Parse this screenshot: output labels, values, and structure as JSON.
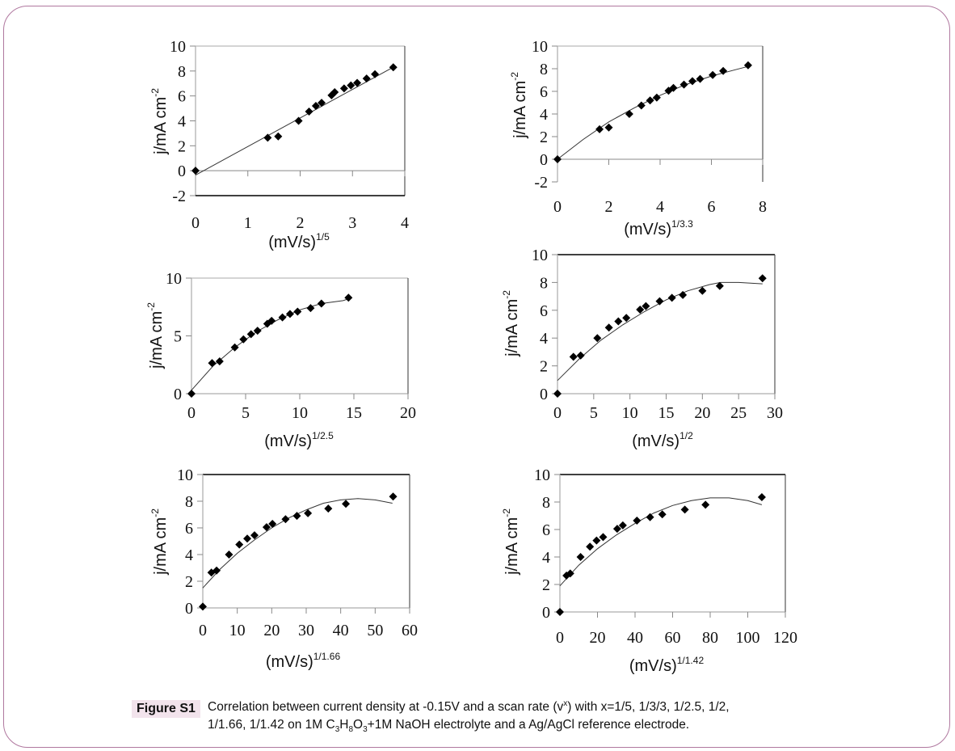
{
  "figure": {
    "label": "Figure S1",
    "caption_line1": "Correlation between current density at -0.15V and a scan rate (v",
    "caption_sup": "x",
    "caption_line1b": ") with x=1/5, 1/3/3, 1/2.5, 1/2,",
    "caption_line2a": "1/1.66, 1/1.42 on 1M C",
    "sub3a": "3",
    "H": "H",
    "sub8": "8",
    "O": "O",
    "sub3b": "3",
    "caption_line2b": "+1M NaOH electrolyte and a Ag/AgCl reference electrode.",
    "colors": {
      "border": "#b0789f",
      "badge_bg": "#f2e3ec",
      "marker": "#000000",
      "fit_line": "#333333"
    }
  },
  "chart_data": [
    {
      "type": "scatter",
      "title": "",
      "xlabel": "(mV/s)",
      "xlabel_exp": "1/5",
      "ylabel": "j/mA cm",
      "ylabel_exp": "-2",
      "xlim": [
        0,
        4
      ],
      "ylim": [
        -2,
        10
      ],
      "xticks": [
        0,
        1,
        2,
        3,
        4
      ],
      "yticks": [
        -2,
        0,
        2,
        4,
        6,
        8,
        10
      ],
      "x": [
        0,
        1.38,
        1.58,
        1.97,
        2.17,
        2.3,
        2.41,
        2.6,
        2.66,
        2.84,
        2.97,
        3.09,
        3.27,
        3.43,
        3.78
      ],
      "y": [
        0,
        2.65,
        2.75,
        4.0,
        4.75,
        5.2,
        5.45,
        6.05,
        6.3,
        6.6,
        6.85,
        7.05,
        7.4,
        7.75,
        8.3
      ],
      "fit": {
        "kind": "linear",
        "x": [
          0,
          3.8
        ],
        "y": [
          -0.35,
          8.35
        ]
      }
    },
    {
      "type": "scatter",
      "title": "",
      "xlabel": "(mV/s)",
      "xlabel_exp": "1/3.3",
      "ylabel": "j/mA cm",
      "ylabel_exp": "-2",
      "xlim": [
        0,
        8
      ],
      "ylim": [
        -2,
        10
      ],
      "xticks": [
        0,
        2,
        4,
        6,
        8
      ],
      "yticks": [
        -2,
        0,
        2,
        4,
        6,
        8,
        10
      ],
      "x": [
        0,
        1.64,
        2.0,
        2.8,
        3.27,
        3.61,
        3.87,
        4.33,
        4.52,
        4.93,
        5.26,
        5.56,
        6.05,
        6.46,
        7.43
      ],
      "y": [
        0,
        2.65,
        2.8,
        4.0,
        4.75,
        5.2,
        5.45,
        6.05,
        6.3,
        6.6,
        6.9,
        7.1,
        7.45,
        7.8,
        8.3
      ],
      "fit": {
        "kind": "curve",
        "x": [
          0,
          1,
          2,
          3,
          4,
          5,
          6,
          7,
          7.43
        ],
        "y": [
          0,
          1.75,
          3.3,
          4.55,
          5.65,
          6.6,
          7.35,
          7.95,
          8.2
        ]
      }
    },
    {
      "type": "scatter",
      "title": "",
      "xlabel": "(mV/s)",
      "xlabel_exp": "1/2.5",
      "ylabel": "j/mA cm",
      "ylabel_exp": "-2",
      "xlim": [
        0,
        20
      ],
      "ylim": [
        0,
        10
      ],
      "xticks": [
        0,
        5,
        10,
        15,
        20
      ],
      "yticks": [
        0,
        5,
        10
      ],
      "x": [
        0,
        1.9,
        2.6,
        4.0,
        4.8,
        5.5,
        6.1,
        7.0,
        7.4,
        8.4,
        9.1,
        9.8,
        11.0,
        12.0,
        14.5
      ],
      "y": [
        0,
        2.65,
        2.8,
        4.0,
        4.7,
        5.15,
        5.45,
        6.05,
        6.3,
        6.6,
        6.9,
        7.1,
        7.4,
        7.8,
        8.3
      ],
      "fit": {
        "kind": "curve",
        "x": [
          0,
          2,
          4,
          6,
          8,
          10,
          12,
          14,
          14.5
        ],
        "y": [
          0.3,
          2.4,
          4.0,
          5.35,
          6.4,
          7.25,
          7.8,
          8.05,
          8.2
        ]
      }
    },
    {
      "type": "scatter",
      "title": "",
      "xlabel": "(mV/s)",
      "xlabel_exp": "1/2",
      "ylabel": "j/mA cm",
      "ylabel_exp": "-2",
      "xlim": [
        0,
        30
      ],
      "ylim": [
        0,
        10
      ],
      "xticks": [
        0,
        5,
        10,
        15,
        20,
        25,
        30
      ],
      "yticks": [
        0,
        2,
        4,
        6,
        8,
        10
      ],
      "x": [
        0,
        2.2,
        3.2,
        5.5,
        7.1,
        8.4,
        9.5,
        11.4,
        12.2,
        14.1,
        15.8,
        17.3,
        20.0,
        22.4,
        28.3
      ],
      "y": [
        0,
        2.65,
        2.75,
        4.0,
        4.75,
        5.2,
        5.45,
        6.05,
        6.3,
        6.65,
        6.9,
        7.1,
        7.4,
        7.75,
        8.3
      ],
      "fit": {
        "kind": "curve",
        "x": [
          0,
          3,
          6,
          9,
          12,
          15,
          18,
          21,
          22.5,
          25,
          28.3
        ],
        "y": [
          0.95,
          2.5,
          3.85,
          4.95,
          5.9,
          6.75,
          7.4,
          7.85,
          8.0,
          8.0,
          7.9
        ]
      }
    },
    {
      "type": "scatter",
      "title": "",
      "xlabel": "(mV/s)",
      "xlabel_exp": "1/1.66",
      "ylabel": "j/mA cm",
      "ylabel_exp": "-2",
      "xlim": [
        0,
        60
      ],
      "ylim": [
        0,
        10
      ],
      "xticks": [
        0,
        10,
        20,
        30,
        40,
        50,
        60
      ],
      "yticks": [
        0,
        2,
        4,
        6,
        8,
        10
      ],
      "x": [
        0,
        2.5,
        4.0,
        7.6,
        10.6,
        12.9,
        15.0,
        18.5,
        20.2,
        24.0,
        27.3,
        30.5,
        36.4,
        41.5,
        55.2
      ],
      "y": [
        0.1,
        2.65,
        2.8,
        4.0,
        4.75,
        5.2,
        5.45,
        6.05,
        6.3,
        6.65,
        6.9,
        7.1,
        7.45,
        7.8,
        8.35
      ],
      "fit": {
        "kind": "curve",
        "x": [
          0,
          5,
          10,
          15,
          20,
          25,
          30,
          35,
          40,
          45,
          50,
          55
        ],
        "y": [
          1.5,
          2.9,
          4.1,
          5.1,
          6.0,
          6.75,
          7.35,
          7.85,
          8.1,
          8.2,
          8.1,
          7.85
        ]
      }
    },
    {
      "type": "scatter",
      "title": "",
      "xlabel": "(mV/s)",
      "xlabel_exp": "1/1.42",
      "ylabel": "j/mA cm",
      "ylabel_exp": "-2",
      "xlim": [
        0,
        120
      ],
      "ylim": [
        0,
        10
      ],
      "xticks": [
        0,
        20,
        40,
        60,
        80,
        100,
        120
      ],
      "yticks": [
        0,
        2,
        4,
        6,
        8,
        10
      ],
      "x": [
        0,
        3.5,
        5.5,
        11,
        16,
        19.5,
        23,
        30.5,
        33.5,
        41,
        48,
        54.5,
        66.5,
        77.5,
        107.5
      ],
      "y": [
        0,
        2.65,
        2.8,
        4.0,
        4.75,
        5.2,
        5.45,
        6.05,
        6.3,
        6.65,
        6.9,
        7.1,
        7.45,
        7.8,
        8.35
      ],
      "fit": {
        "kind": "curve",
        "x": [
          0,
          10,
          20,
          30,
          40,
          50,
          60,
          70,
          80,
          90,
          100,
          107.5
        ],
        "y": [
          1.9,
          3.4,
          4.6,
          5.6,
          6.45,
          7.2,
          7.75,
          8.1,
          8.3,
          8.3,
          8.1,
          7.8
        ]
      }
    }
  ]
}
